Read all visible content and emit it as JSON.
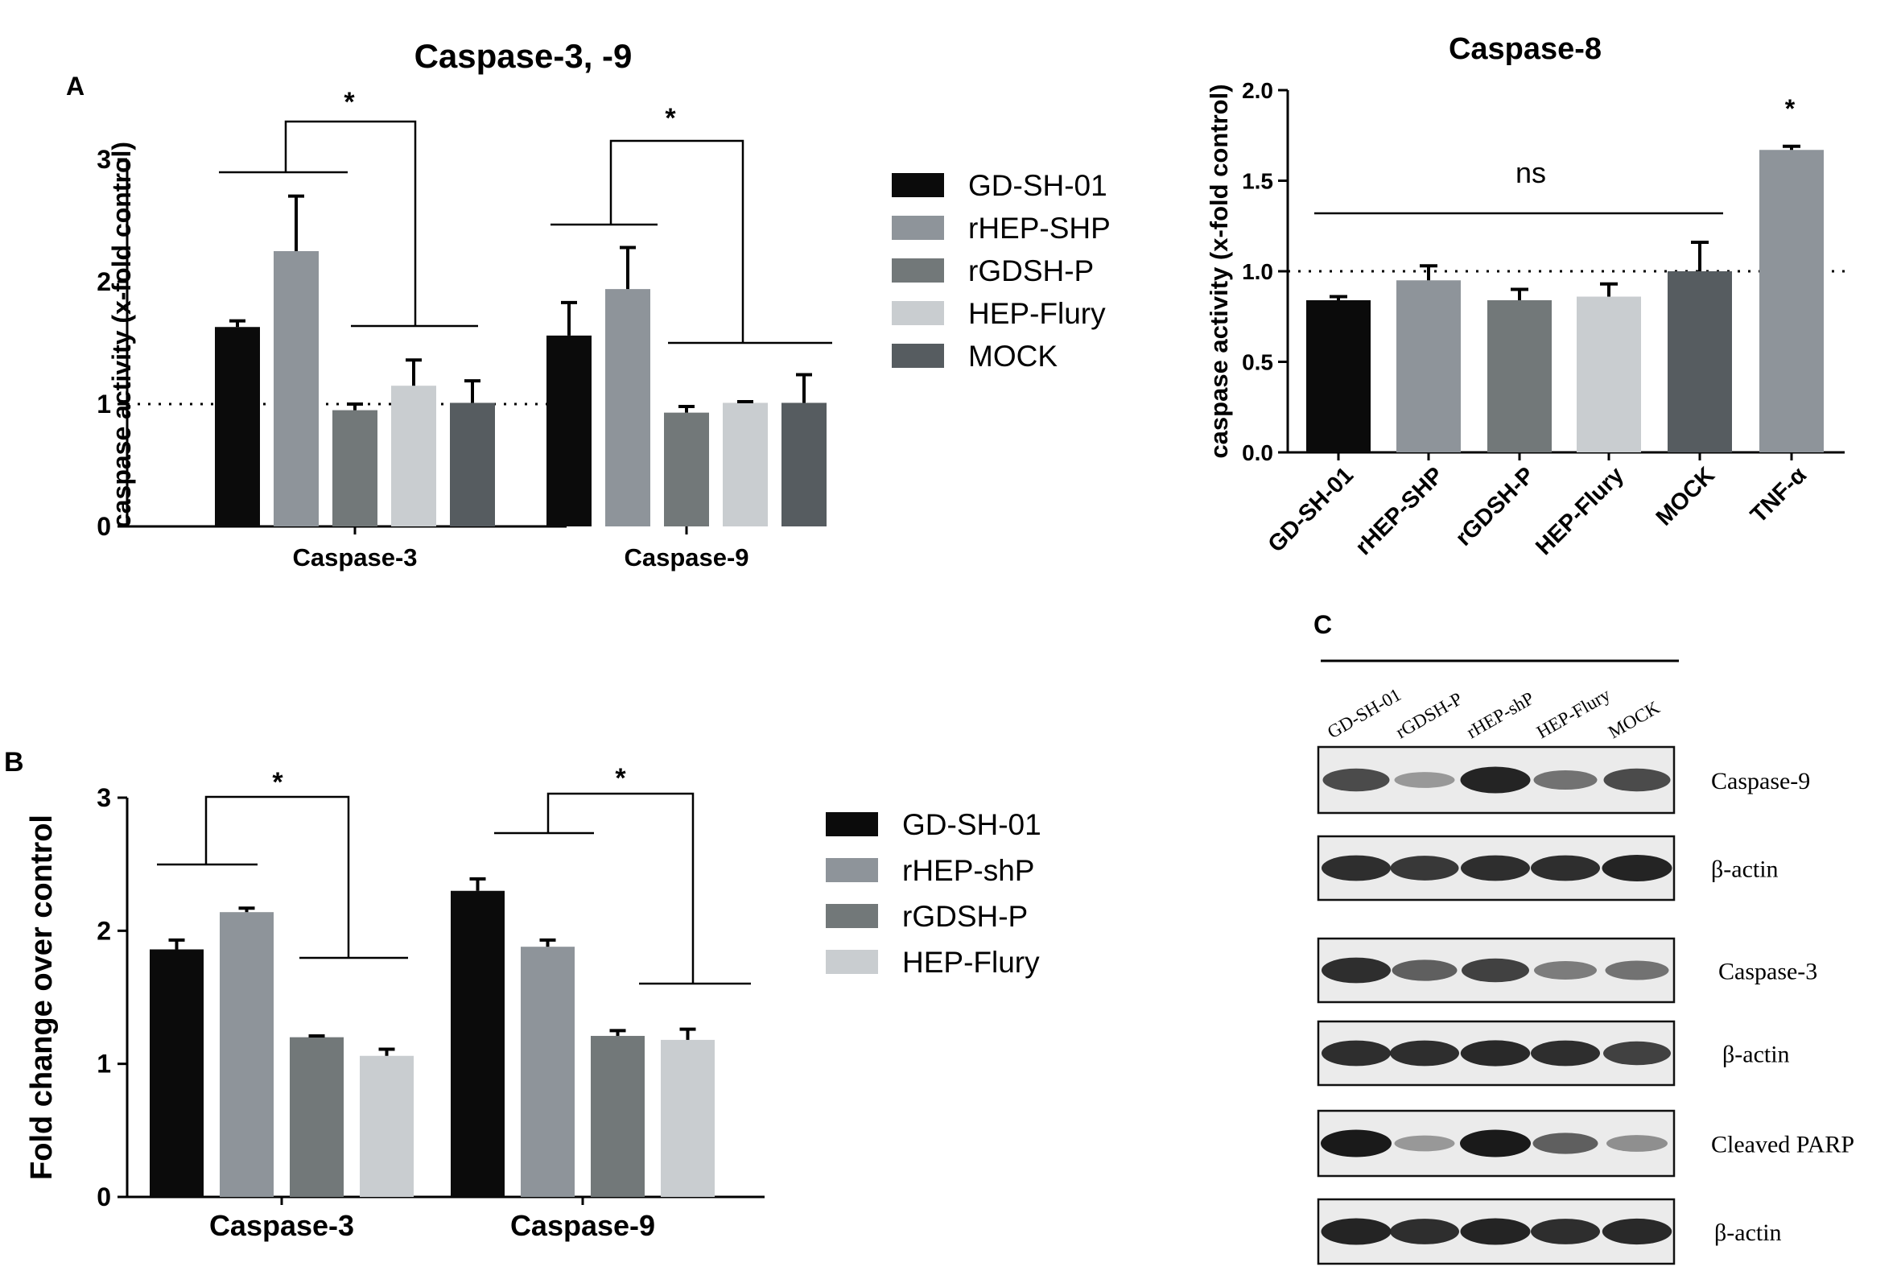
{
  "panels": {
    "A": "A",
    "B": "B",
    "C": "C"
  },
  "colors": {
    "GD-SH-01": "#0b0b0b",
    "rHEP": "#8e949a",
    "rGDSH-P": "#727879",
    "HEP-Flury": "#c9cdd0",
    "MOCK": "#565c60",
    "TNF": "#8e949a"
  },
  "chart_data": [
    {
      "id": "A1",
      "type": "bar",
      "title": "Caspase-3, -9",
      "ylabel": "caspase activity (x-fold control)",
      "xlabel": "",
      "ylim": [
        0,
        3
      ],
      "yticks": [
        0,
        1,
        2,
        3
      ],
      "categories": [
        "Caspase-3",
        "Caspase-9"
      ],
      "reference_line": 1,
      "series": [
        {
          "name": "GD-SH-01",
          "color_key": "GD-SH-01",
          "values": [
            1.63,
            1.56
          ],
          "errors": [
            0.05,
            0.27
          ]
        },
        {
          "name": "rHEP-SHP",
          "color_key": "rHEP",
          "values": [
            2.25,
            1.94
          ],
          "errors": [
            0.45,
            0.34
          ]
        },
        {
          "name": "rGDSH-P",
          "color_key": "rGDSH-P",
          "values": [
            0.95,
            0.93
          ],
          "errors": [
            0.05,
            0.05
          ]
        },
        {
          "name": "HEP-Flury",
          "color_key": "HEP-Flury",
          "values": [
            1.15,
            1.01
          ],
          "errors": [
            0.21,
            0.01
          ]
        },
        {
          "name": "MOCK",
          "color_key": "MOCK",
          "values": [
            1.01,
            1.01
          ],
          "errors": [
            0.18,
            0.23
          ]
        }
      ],
      "annotations": [
        "*",
        "*"
      ],
      "legend": "right"
    },
    {
      "id": "A2",
      "type": "bar",
      "title": "Caspase-8",
      "ylabel": "caspase activity (x-fold control)",
      "xlabel": "",
      "ylim": [
        0,
        2.0
      ],
      "yticks": [
        "0.0",
        "0.5",
        "1.0",
        "1.5",
        "2.0"
      ],
      "categories": [
        "GD-SH-01",
        "rHEP-SHP",
        "rGDSH-P",
        "HEP-Flury",
        "MOCK",
        "TNF-α"
      ],
      "reference_line": 1,
      "values": [
        0.84,
        0.95,
        0.84,
        0.86,
        1.0,
        1.67
      ],
      "errors": [
        0.02,
        0.08,
        0.06,
        0.07,
        0.16,
        0.02
      ],
      "color_keys": [
        "GD-SH-01",
        "rHEP",
        "rGDSH-P",
        "HEP-Flury",
        "MOCK",
        "TNF"
      ],
      "annotations": [
        "ns",
        "*"
      ]
    },
    {
      "id": "B",
      "type": "bar",
      "title": "",
      "ylabel": "Fold change over control",
      "xlabel": "",
      "ylim": [
        0,
        3
      ],
      "yticks": [
        0,
        1,
        2,
        3
      ],
      "categories": [
        "Caspase-3",
        "Caspase-9"
      ],
      "series": [
        {
          "name": "GD-SH-01",
          "color_key": "GD-SH-01",
          "values": [
            1.86,
            2.3
          ],
          "errors": [
            0.07,
            0.09
          ]
        },
        {
          "name": "rHEP-shP",
          "color_key": "rHEP",
          "values": [
            2.14,
            1.88
          ],
          "errors": [
            0.03,
            0.05
          ]
        },
        {
          "name": "rGDSH-P",
          "color_key": "rGDSH-P",
          "values": [
            1.2,
            1.21
          ],
          "errors": [
            0.01,
            0.04
          ]
        },
        {
          "name": "HEP-Flury",
          "color_key": "HEP-Flury",
          "values": [
            1.06,
            1.18
          ],
          "errors": [
            0.05,
            0.08
          ]
        }
      ],
      "annotations": [
        "*",
        "*"
      ],
      "legend": "right"
    }
  ],
  "blot": {
    "lanes": [
      "GD-SH-01",
      "rGDSH-P",
      "rHEP-shP",
      "HEP-Flury",
      "MOCK"
    ],
    "rows": [
      {
        "label": "Caspase-9",
        "intensity": [
          0.75,
          0.35,
          0.95,
          0.55,
          0.75
        ]
      },
      {
        "label": "β-actin",
        "intensity": [
          0.9,
          0.85,
          0.9,
          0.9,
          0.95
        ]
      },
      {
        "label": "Caspase-3",
        "intensity": [
          0.9,
          0.65,
          0.8,
          0.5,
          0.55
        ]
      },
      {
        "label": "β-actin",
        "intensity": [
          0.9,
          0.9,
          0.92,
          0.9,
          0.8
        ]
      },
      {
        "label": "Cleaved PARP",
        "intensity": [
          1.0,
          0.35,
          1.0,
          0.65,
          0.4
        ]
      },
      {
        "label": "β-actin",
        "intensity": [
          0.95,
          0.9,
          0.95,
          0.9,
          0.92
        ]
      }
    ]
  }
}
